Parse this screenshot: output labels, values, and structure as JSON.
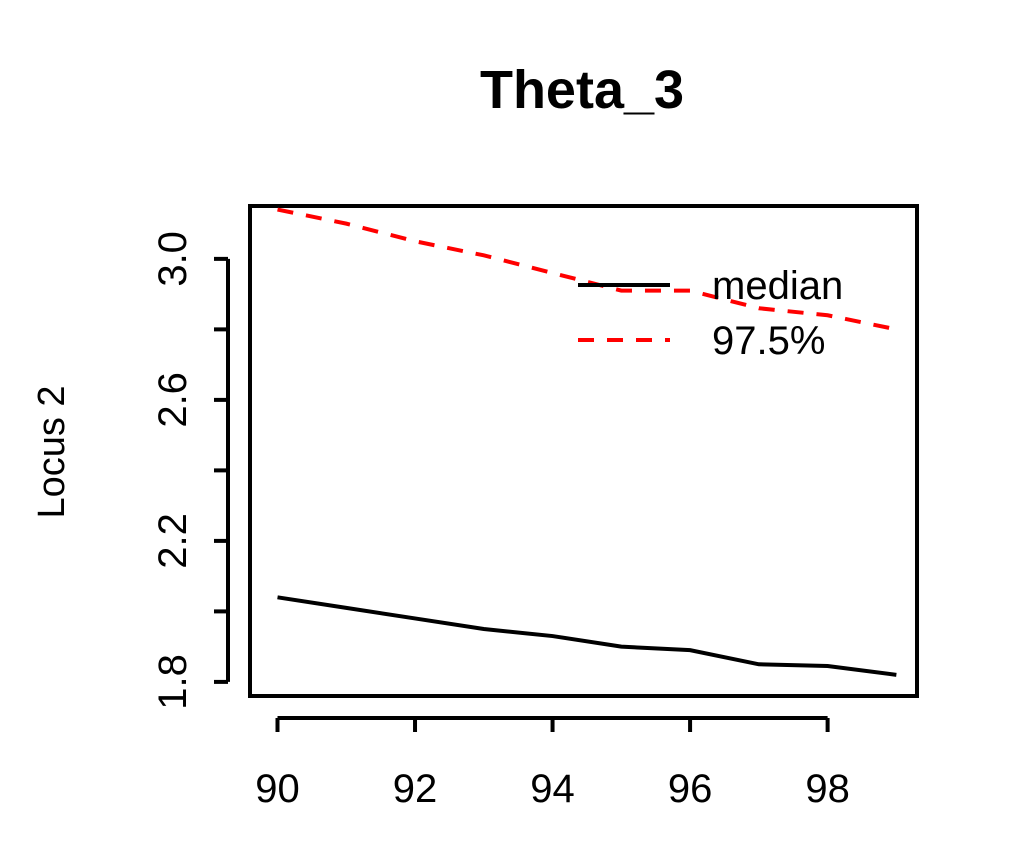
{
  "chart_data": {
    "type": "line",
    "title": "Theta_3",
    "xlabel": "",
    "ylabel": "Locus 2",
    "xlim": [
      89.6,
      99.3
    ],
    "ylim": [
      1.76,
      3.15
    ],
    "xticks": [
      90,
      92,
      94,
      96,
      98
    ],
    "xtick_labels": [
      "90",
      "92",
      "94",
      "96",
      "98"
    ],
    "yticks": [
      1.8,
      2.0,
      2.2,
      2.4,
      2.6,
      2.8,
      3.0
    ],
    "ytick_labels": [
      "1.8",
      "",
      "2.2",
      "",
      "2.6",
      "",
      "3.0"
    ],
    "grid": false,
    "legend_position": "top-right",
    "x": [
      90,
      91,
      92,
      93,
      94,
      95,
      96,
      97,
      98,
      99
    ],
    "series": [
      {
        "name": "median",
        "color": "#000000",
        "style": "solid",
        "values": [
          2.04,
          2.01,
          1.98,
          1.95,
          1.93,
          1.9,
          1.89,
          1.85,
          1.845,
          1.82
        ]
      },
      {
        "name": "97.5%",
        "color": "#ff0000",
        "style": "dashed",
        "values": [
          3.14,
          3.1,
          3.05,
          3.01,
          2.96,
          2.91,
          2.91,
          2.86,
          2.84,
          2.8
        ]
      }
    ]
  }
}
